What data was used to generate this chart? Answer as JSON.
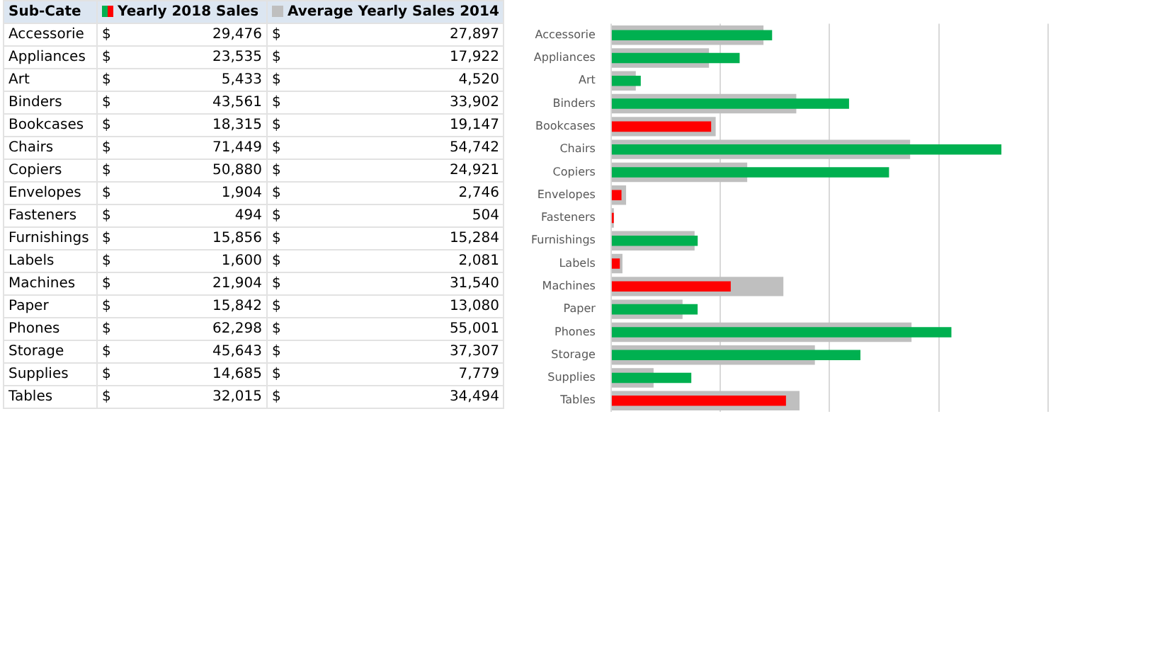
{
  "chart_data": {
    "type": "bar",
    "orientation": "horizontal",
    "annotations": [
      "Sub-Cate",
      "$"
    ],
    "categories": [
      "Accessorie",
      "Appliances",
      "Art",
      "Binders",
      "Bookcases",
      "Chairs",
      "Copiers",
      "Envelopes",
      "Fasteners",
      "Furnishings",
      "Labels",
      "Machines",
      "Paper",
      "Phones",
      "Storage",
      "Supplies",
      "Tables"
    ],
    "series": [
      {
        "name": "Yearly 2018 Sales",
        "colors": [
          "#00b050",
          "#00b050",
          "#00b050",
          "#00b050",
          "#ff0000",
          "#00b050",
          "#00b050",
          "#ff0000",
          "#ff0000",
          "#00b050",
          "#ff0000",
          "#ff0000",
          "#00b050",
          "#00b050",
          "#00b050",
          "#00b050",
          "#ff0000"
        ],
        "values": [
          29476,
          23535,
          5433,
          43561,
          18315,
          71449,
          50880,
          1904,
          494,
          15856,
          1600,
          21904,
          15842,
          62298,
          45643,
          14685,
          32015
        ],
        "value_labels": [
          "29,476",
          "23,535",
          "5,433",
          "43,561",
          "18,315",
          "71,449",
          "50,880",
          "1,904",
          "494",
          "15,856",
          "1,600",
          "21,904",
          "15,842",
          "62,298",
          "45,643",
          "14,685",
          "32,015"
        ]
      },
      {
        "name": "Average Yearly Sales 2014",
        "color": "#bfbfbf",
        "values": [
          27897,
          17922,
          4520,
          33902,
          19147,
          54742,
          24921,
          2746,
          504,
          15284,
          2081,
          31540,
          13080,
          55001,
          37307,
          7779,
          34494
        ],
        "value_labels": [
          "27,897",
          "17,922",
          "4,520",
          "33,902",
          "19,147",
          "54,742",
          "24,921",
          "2,746",
          "504",
          "15,284",
          "2,081",
          "31,540",
          "13,080",
          "55,001",
          "37,307",
          "7,779",
          "34,494"
        ]
      }
    ],
    "grid": "x",
    "tick_labels": "y",
    "legend": "top left"
  }
}
